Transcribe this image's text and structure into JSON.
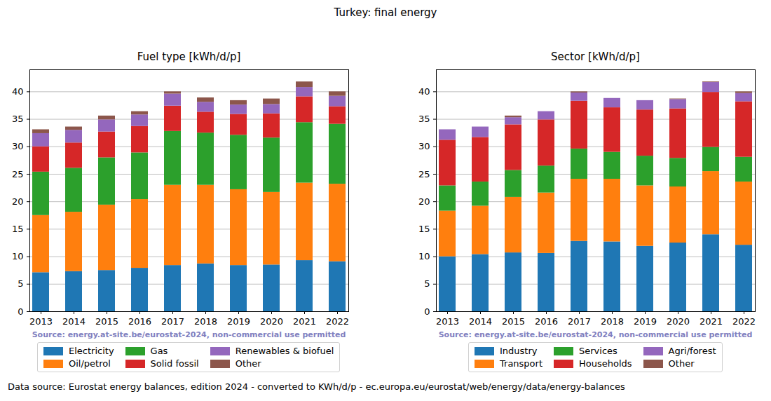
{
  "title": "Turkey: final energy",
  "caption": "Data source: Eurostat energy balances, edition 2024 - converted to KWh/d/p - ec.europa.eu/eurostat/web/energy/data/energy-balances",
  "chart_data": [
    {
      "type": "bar",
      "stacked": true,
      "title": "Fuel type [kWh/d/p]",
      "source": "Source: energy.at-site.be/eurostat-2024, non-commercial use permitted",
      "categories": [
        "2013",
        "2014",
        "2015",
        "2016",
        "2017",
        "2018",
        "2019",
        "2020",
        "2021",
        "2022"
      ],
      "series": [
        {
          "name": "Electricity",
          "color": "#1f77b4",
          "values": [
            7.1,
            7.3,
            7.5,
            7.9,
            8.4,
            8.7,
            8.4,
            8.5,
            9.3,
            9.1
          ]
        },
        {
          "name": "Oil/petrol",
          "color": "#ff7f0e",
          "values": [
            10.4,
            10.8,
            11.9,
            12.5,
            14.6,
            14.3,
            13.8,
            13.2,
            14.1,
            14.1
          ]
        },
        {
          "name": "Gas",
          "color": "#2ca02c",
          "values": [
            7.9,
            8.0,
            8.6,
            8.5,
            9.8,
            9.5,
            9.9,
            9.9,
            11.0,
            10.9
          ]
        },
        {
          "name": "Solid fossil",
          "color": "#d62728",
          "values": [
            4.6,
            4.6,
            4.7,
            4.8,
            4.6,
            3.8,
            3.8,
            4.4,
            4.7,
            3.2
          ]
        },
        {
          "name": "Renewables & biofuel",
          "color": "#9467bd",
          "values": [
            2.4,
            2.3,
            2.2,
            2.1,
            2.2,
            1.8,
            1.7,
            1.7,
            1.7,
            1.9
          ]
        },
        {
          "name": "Other",
          "color": "#8c564b",
          "values": [
            0.7,
            0.6,
            0.7,
            0.6,
            0.4,
            0.8,
            0.8,
            1.0,
            1.0,
            0.8
          ]
        }
      ],
      "ylim": [
        0,
        44
      ],
      "yticks": [
        0,
        5,
        10,
        15,
        20,
        25,
        30,
        35,
        40
      ],
      "grid": true,
      "legend": "bottom"
    },
    {
      "type": "bar",
      "stacked": true,
      "title": "Sector [kWh/d/p]",
      "source": "Source: energy.at-site.be/eurostat-2024, non-commercial use permitted",
      "categories": [
        "2013",
        "2014",
        "2015",
        "2016",
        "2017",
        "2018",
        "2019",
        "2020",
        "2021",
        "2022"
      ],
      "series": [
        {
          "name": "Industry",
          "color": "#1f77b4",
          "values": [
            10.0,
            10.4,
            10.7,
            10.6,
            12.8,
            12.7,
            11.9,
            12.5,
            14.0,
            12.1
          ]
        },
        {
          "name": "Transport",
          "color": "#ff7f0e",
          "values": [
            8.3,
            8.8,
            10.1,
            11.0,
            11.3,
            11.4,
            11.0,
            10.2,
            11.5,
            11.5
          ]
        },
        {
          "name": "Services",
          "color": "#2ca02c",
          "values": [
            4.6,
            4.4,
            4.9,
            4.9,
            5.5,
            4.9,
            5.4,
            5.2,
            4.4,
            4.5
          ]
        },
        {
          "name": "Households",
          "color": "#d62728",
          "values": [
            8.3,
            8.1,
            8.3,
            8.4,
            8.7,
            8.1,
            8.4,
            9.0,
            10.0,
            10.1
          ]
        },
        {
          "name": "Agri/forest",
          "color": "#9467bd",
          "values": [
            1.9,
            1.9,
            1.3,
            1.5,
            1.5,
            1.7,
            1.7,
            1.7,
            1.8,
            1.5
          ]
        },
        {
          "name": "Other",
          "color": "#8c564b",
          "values": [
            0.0,
            0.0,
            0.3,
            0.0,
            0.2,
            0.0,
            0.0,
            0.1,
            0.1,
            0.3
          ]
        }
      ],
      "ylim": [
        0,
        44
      ],
      "yticks": [
        0,
        5,
        10,
        15,
        20,
        25,
        30,
        35,
        40
      ],
      "grid": true,
      "legend": "bottom"
    }
  ]
}
